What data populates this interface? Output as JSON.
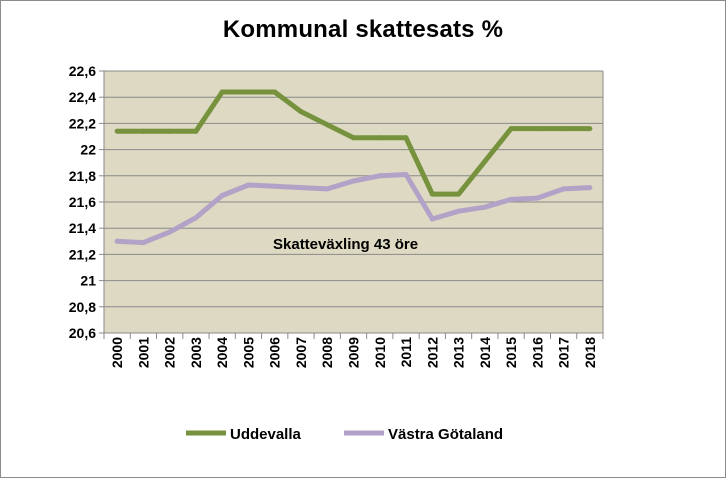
{
  "chart_data": {
    "type": "line",
    "title": "Kommunal skattesats %",
    "xlabel": "",
    "ylabel": "",
    "x": [
      "2000",
      "2001",
      "2002",
      "2003",
      "2004",
      "2005",
      "2006",
      "2007",
      "2008",
      "2009",
      "2010",
      "2011",
      "2012",
      "2013",
      "2014",
      "2015",
      "2016",
      "2017",
      "2018"
    ],
    "ylim": [
      20.6,
      22.6
    ],
    "yticks": [
      "20,6",
      "20,8",
      "21",
      "21,2",
      "21,4",
      "21,6",
      "21,8",
      "22",
      "22,2",
      "22,4",
      "22,6"
    ],
    "grid": true,
    "legend": "bottom",
    "annotation": "Skatteväxling 43 öre",
    "series": [
      {
        "name": "Uddevalla",
        "color": "#76923c",
        "values": [
          22.14,
          22.14,
          22.14,
          22.14,
          22.44,
          22.44,
          22.44,
          22.29,
          22.19,
          22.09,
          22.09,
          22.09,
          21.66,
          21.66,
          21.91,
          22.16,
          22.16,
          22.16,
          22.16
        ]
      },
      {
        "name": "Västra Götaland",
        "color": "#b3a2c7",
        "values": [
          21.3,
          21.29,
          21.37,
          21.48,
          21.65,
          21.73,
          21.72,
          21.71,
          21.7,
          21.76,
          21.8,
          21.81,
          21.47,
          21.53,
          21.56,
          21.62,
          21.63,
          21.7,
          21.71
        ]
      }
    ]
  }
}
